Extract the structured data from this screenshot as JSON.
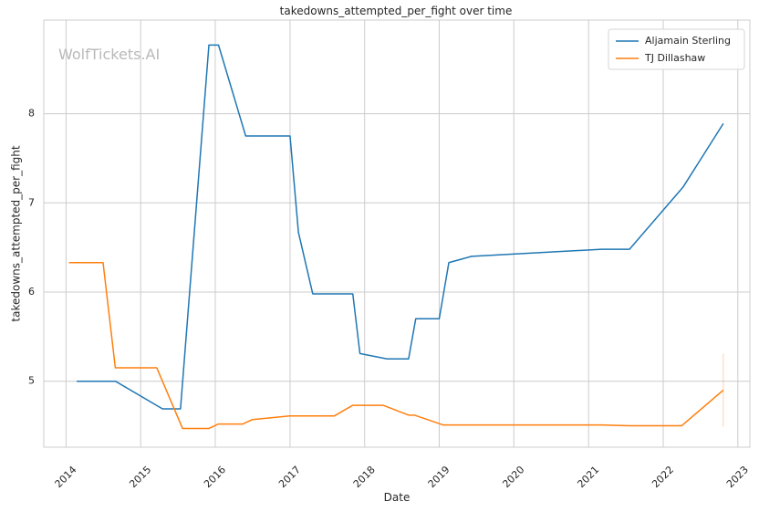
{
  "watermark": "WolfTickets.AI",
  "colors": {
    "background": "#ffffff",
    "grid": "#cccccc",
    "axis_spine": "#cccccc"
  },
  "chart_data": {
    "type": "line",
    "title": "takedowns_attempted_per_fight over time",
    "xlabel": "Date",
    "ylabel": "takedowns_attempted_per_fight",
    "xlim": [
      "2013-09-14",
      "2023-03-01"
    ],
    "ylim": [
      4.26,
      9.05
    ],
    "x_ticks": [
      "2014",
      "2015",
      "2016",
      "2017",
      "2018",
      "2019",
      "2020",
      "2021",
      "2022",
      "2023"
    ],
    "y_ticks": [
      5,
      6,
      7,
      8
    ],
    "grid": true,
    "legend_position": "top-right",
    "series": [
      {
        "name": "Aljamain Sterling",
        "color": "#1f77b4",
        "points": [
          {
            "x": "2014-02-22",
            "y": 5.0
          },
          {
            "x": "2014-08-30",
            "y": 5.0
          },
          {
            "x": "2015-04-18",
            "y": 4.69
          },
          {
            "x": "2015-07-15",
            "y": 4.69
          },
          {
            "x": "2015-12-01",
            "y": 8.77
          },
          {
            "x": "2016-01-17",
            "y": 8.77
          },
          {
            "x": "2016-05-29",
            "y": 7.75
          },
          {
            "x": "2017-01-01",
            "y": 7.75
          },
          {
            "x": "2017-02-11",
            "y": 6.67
          },
          {
            "x": "2017-04-22",
            "y": 5.98
          },
          {
            "x": "2017-11-04",
            "y": 5.98
          },
          {
            "x": "2017-12-09",
            "y": 5.31
          },
          {
            "x": "2018-04-21",
            "y": 5.25
          },
          {
            "x": "2018-08-04",
            "y": 5.25
          },
          {
            "x": "2018-09-08",
            "y": 5.7
          },
          {
            "x": "2019-01-01",
            "y": 5.7
          },
          {
            "x": "2019-02-17",
            "y": 6.33
          },
          {
            "x": "2019-06-08",
            "y": 6.4
          },
          {
            "x": "2021-03-06",
            "y": 6.48
          },
          {
            "x": "2021-07-20",
            "y": 6.48
          },
          {
            "x": "2022-04-09",
            "y": 7.18
          },
          {
            "x": "2022-10-22",
            "y": 7.89
          }
        ]
      },
      {
        "name": "TJ Dillashaw",
        "color": "#ff7f0e",
        "points": [
          {
            "x": "2014-01-15",
            "y": 6.33
          },
          {
            "x": "2014-07-01",
            "y": 6.33
          },
          {
            "x": "2014-08-30",
            "y": 5.15
          },
          {
            "x": "2015-03-21",
            "y": 5.15
          },
          {
            "x": "2015-07-25",
            "y": 4.47
          },
          {
            "x": "2015-12-01",
            "y": 4.47
          },
          {
            "x": "2016-01-17",
            "y": 4.52
          },
          {
            "x": "2016-05-15",
            "y": 4.52
          },
          {
            "x": "2016-07-01",
            "y": 4.57
          },
          {
            "x": "2016-12-30",
            "y": 4.61
          },
          {
            "x": "2017-08-05",
            "y": 4.61
          },
          {
            "x": "2017-11-04",
            "y": 4.73
          },
          {
            "x": "2018-04-01",
            "y": 4.73
          },
          {
            "x": "2018-08-04",
            "y": 4.62
          },
          {
            "x": "2018-09-01",
            "y": 4.62
          },
          {
            "x": "2019-01-19",
            "y": 4.51
          },
          {
            "x": "2021-03-01",
            "y": 4.51
          },
          {
            "x": "2021-07-24",
            "y": 4.5
          },
          {
            "x": "2022-04-01",
            "y": 4.5
          },
          {
            "x": "2022-10-22",
            "y": 4.9
          }
        ],
        "error_bar": {
          "x": "2022-10-22",
          "low": 4.49,
          "high": 5.31
        }
      }
    ]
  }
}
